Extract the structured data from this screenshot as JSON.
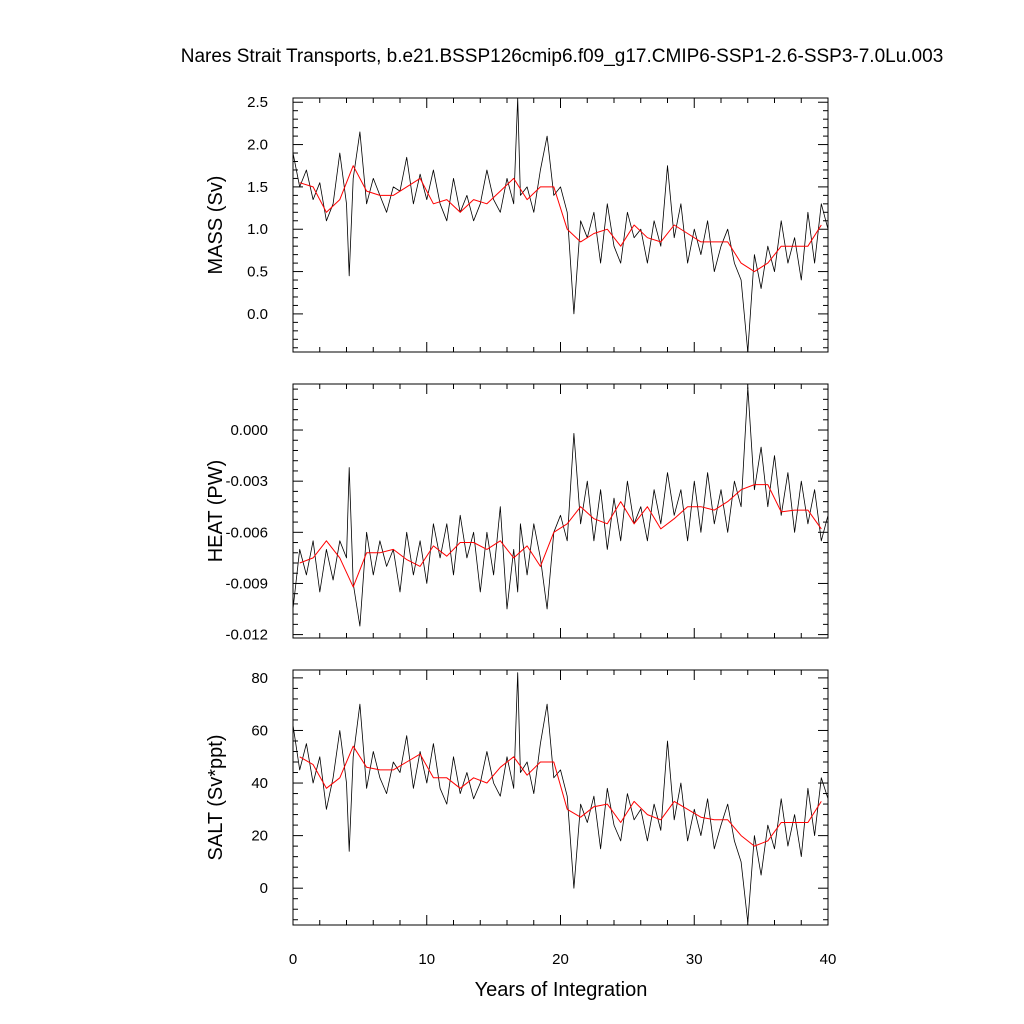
{
  "chart_data": {
    "type": "line",
    "title": "Nares Strait Transports, b.e21.BSSP126cmip6.f09_g17.CMIP6-SSP1-2.6-SSP3-7.0Lu.003",
    "xlabel": "Years of Integration",
    "xlim": [
      0,
      40
    ],
    "x_ticks": [
      "0",
      "10",
      "20",
      "30",
      "40"
    ],
    "colors": {
      "monthly": "#000000",
      "annual_mean": "#ff0000"
    },
    "panels": [
      {
        "name": "mass",
        "ylabel": "MASS (Sv)",
        "ylim": [
          -0.45,
          2.55
        ],
        "y_ticks": [
          "2.5",
          "2.0",
          "1.5",
          "1.0",
          "0.5",
          "0.0"
        ],
        "series": [
          {
            "x": [
              0.0,
              0.5,
              1.0,
              1.5,
              2.0,
              2.5,
              3.0,
              3.5,
              4.0,
              4.2,
              4.5,
              5.0,
              5.5,
              6.0,
              6.5,
              7.0,
              7.5,
              8.0,
              8.5,
              9.0,
              9.5,
              10.0,
              10.5,
              11.0,
              11.5,
              12.0,
              12.5,
              13.0,
              13.5,
              14.0,
              14.5,
              15.0,
              15.5,
              16.0,
              16.5,
              16.8,
              17.0,
              17.5,
              18.0,
              18.5,
              19.0,
              19.5,
              20.0,
              20.5,
              21.0,
              21.5,
              22.0,
              22.5,
              23.0,
              23.5,
              24.0,
              24.5,
              25.0,
              25.5,
              26.0,
              26.5,
              27.0,
              27.5,
              28.0,
              28.5,
              29.0,
              29.5,
              30.0,
              30.5,
              31.0,
              31.5,
              32.0,
              32.5,
              33.0,
              33.5,
              34.0,
              34.5,
              35.0,
              35.5,
              36.0,
              36.5,
              37.0,
              37.5,
              38.0,
              38.5,
              39.0,
              39.5,
              40.0
            ],
            "values": [
              1.9,
              1.5,
              1.7,
              1.35,
              1.55,
              1.1,
              1.3,
              1.9,
              1.3,
              0.45,
              1.6,
              2.15,
              1.3,
              1.6,
              1.4,
              1.2,
              1.5,
              1.45,
              1.85,
              1.3,
              1.65,
              1.35,
              1.7,
              1.3,
              1.1,
              1.6,
              1.2,
              1.4,
              1.1,
              1.3,
              1.7,
              1.35,
              1.2,
              1.6,
              1.3,
              2.55,
              1.4,
              1.5,
              1.2,
              1.7,
              2.1,
              1.4,
              1.5,
              1.2,
              0.0,
              1.1,
              0.9,
              1.2,
              0.6,
              1.3,
              0.8,
              0.6,
              1.2,
              0.9,
              1.0,
              0.6,
              1.1,
              0.8,
              1.75,
              0.9,
              1.3,
              0.6,
              1.0,
              0.7,
              1.1,
              0.5,
              0.8,
              1.0,
              0.6,
              0.4,
              -0.45,
              0.7,
              0.3,
              0.8,
              0.5,
              1.1,
              0.6,
              0.9,
              0.4,
              1.2,
              0.6,
              1.3,
              1.0
            ]
          },
          {
            "x": [
              0.5,
              1.5,
              2.5,
              3.5,
              4.5,
              5.5,
              6.5,
              7.5,
              8.5,
              9.5,
              10.5,
              11.5,
              12.5,
              13.5,
              14.5,
              15.5,
              16.5,
              17.5,
              18.5,
              19.5,
              20.5,
              21.5,
              22.5,
              23.5,
              24.5,
              25.5,
              26.5,
              27.5,
              28.5,
              29.5,
              30.5,
              31.5,
              32.5,
              33.5,
              34.5,
              35.5,
              36.5,
              37.5,
              38.5,
              39.5
            ],
            "values": [
              1.55,
              1.5,
              1.2,
              1.35,
              1.75,
              1.45,
              1.4,
              1.4,
              1.5,
              1.6,
              1.3,
              1.35,
              1.2,
              1.35,
              1.3,
              1.45,
              1.6,
              1.35,
              1.5,
              1.5,
              1.0,
              0.85,
              0.95,
              1.0,
              0.8,
              1.05,
              0.9,
              0.85,
              1.05,
              0.95,
              0.85,
              0.85,
              0.85,
              0.6,
              0.5,
              0.6,
              0.8,
              0.8,
              0.8,
              1.05
            ]
          }
        ]
      },
      {
        "name": "heat",
        "ylabel": "HEAT (PW)",
        "ylim": [
          -0.0122,
          0.0027
        ],
        "y_ticks": [
          "0.000",
          "-0.003",
          "-0.006",
          "-0.009",
          "-0.012"
        ],
        "series": [
          {
            "x": [
              0.0,
              0.5,
              1.0,
              1.5,
              2.0,
              2.5,
              3.0,
              3.5,
              4.0,
              4.2,
              4.5,
              5.0,
              5.5,
              6.0,
              6.5,
              7.0,
              7.5,
              8.0,
              8.5,
              9.0,
              9.5,
              10.0,
              10.5,
              11.0,
              11.5,
              12.0,
              12.5,
              13.0,
              13.5,
              14.0,
              14.5,
              15.0,
              15.5,
              16.0,
              16.5,
              16.8,
              17.0,
              17.5,
              18.0,
              18.5,
              19.0,
              19.5,
              20.0,
              20.5,
              21.0,
              21.5,
              22.0,
              22.5,
              23.0,
              23.5,
              24.0,
              24.5,
              25.0,
              25.5,
              26.0,
              26.5,
              27.0,
              27.5,
              28.0,
              28.5,
              29.0,
              29.5,
              30.0,
              30.5,
              31.0,
              31.5,
              32.0,
              32.5,
              33.0,
              33.5,
              34.0,
              34.5,
              35.0,
              35.5,
              36.0,
              36.5,
              37.0,
              37.5,
              38.0,
              38.5,
              39.0,
              39.5,
              40.0
            ],
            "values": [
              -0.0105,
              -0.007,
              -0.0085,
              -0.0065,
              -0.0095,
              -0.007,
              -0.0088,
              -0.0065,
              -0.0075,
              -0.0022,
              -0.009,
              -0.0115,
              -0.006,
              -0.0085,
              -0.0065,
              -0.008,
              -0.007,
              -0.0095,
              -0.006,
              -0.0085,
              -0.0065,
              -0.009,
              -0.0055,
              -0.0075,
              -0.0055,
              -0.0085,
              -0.005,
              -0.0075,
              -0.006,
              -0.0095,
              -0.006,
              -0.0085,
              -0.0045,
              -0.0105,
              -0.007,
              -0.0095,
              -0.0055,
              -0.0085,
              -0.0055,
              -0.0075,
              -0.0105,
              -0.006,
              -0.005,
              -0.0065,
              -0.0002,
              -0.0055,
              -0.003,
              -0.0065,
              -0.0035,
              -0.007,
              -0.004,
              -0.0065,
              -0.003,
              -0.0055,
              -0.0045,
              -0.0065,
              -0.0035,
              -0.0055,
              -0.0025,
              -0.005,
              -0.0035,
              -0.0065,
              -0.003,
              -0.006,
              -0.0025,
              -0.0055,
              -0.0035,
              -0.006,
              -0.003,
              -0.0045,
              0.0025,
              -0.0035,
              -0.001,
              -0.0045,
              -0.0015,
              -0.005,
              -0.0025,
              -0.006,
              -0.003,
              -0.0055,
              -0.0035,
              -0.0065,
              -0.005
            ]
          },
          {
            "x": [
              0.5,
              1.5,
              2.5,
              3.5,
              4.5,
              5.5,
              6.5,
              7.5,
              8.5,
              9.5,
              10.5,
              11.5,
              12.5,
              13.5,
              14.5,
              15.5,
              16.5,
              17.5,
              18.5,
              19.5,
              20.5,
              21.5,
              22.5,
              23.5,
              24.5,
              25.5,
              26.5,
              27.5,
              28.5,
              29.5,
              30.5,
              31.5,
              32.5,
              33.5,
              34.5,
              35.5,
              36.5,
              37.5,
              38.5,
              39.5
            ],
            "values": [
              -0.0078,
              -0.0075,
              -0.0065,
              -0.0075,
              -0.0092,
              -0.0072,
              -0.0072,
              -0.007,
              -0.0076,
              -0.008,
              -0.0068,
              -0.0074,
              -0.0066,
              -0.0066,
              -0.007,
              -0.0065,
              -0.0075,
              -0.0068,
              -0.008,
              -0.006,
              -0.0055,
              -0.0045,
              -0.0052,
              -0.0055,
              -0.0042,
              -0.0055,
              -0.0045,
              -0.0058,
              -0.0052,
              -0.0045,
              -0.0045,
              -0.0047,
              -0.0042,
              -0.0035,
              -0.0032,
              -0.0032,
              -0.0048,
              -0.0047,
              -0.0047,
              -0.0058
            ]
          }
        ]
      },
      {
        "name": "salt",
        "ylabel": "SALT (Sv*ppt)",
        "ylim": [
          -14,
          83
        ],
        "y_ticks": [
          "80",
          "60",
          "40",
          "20",
          "0"
        ],
        "series": [
          {
            "x": [
              0.0,
              0.5,
              1.0,
              1.5,
              2.0,
              2.5,
              3.0,
              3.5,
              4.0,
              4.2,
              4.5,
              5.0,
              5.5,
              6.0,
              6.5,
              7.0,
              7.5,
              8.0,
              8.5,
              9.0,
              9.5,
              10.0,
              10.5,
              11.0,
              11.5,
              12.0,
              12.5,
              13.0,
              13.5,
              14.0,
              14.5,
              15.0,
              15.5,
              16.0,
              16.5,
              16.8,
              17.0,
              17.5,
              18.0,
              18.5,
              19.0,
              19.5,
              20.0,
              20.5,
              21.0,
              21.5,
              22.0,
              22.5,
              23.0,
              23.5,
              24.0,
              24.5,
              25.0,
              25.5,
              26.0,
              26.5,
              27.0,
              27.5,
              28.0,
              28.5,
              29.0,
              29.5,
              30.0,
              30.5,
              31.0,
              31.5,
              32.0,
              32.5,
              33.0,
              33.5,
              34.0,
              34.5,
              35.0,
              35.5,
              36.0,
              36.5,
              37.0,
              37.5,
              38.0,
              38.5,
              39.0,
              39.5,
              40.0
            ],
            "values": [
              62,
              45,
              55,
              40,
              50,
              30,
              42,
              60,
              40,
              14,
              50,
              70,
              38,
              52,
              42,
              36,
              48,
              44,
              58,
              38,
              52,
              40,
              55,
              38,
              32,
              50,
              36,
              44,
              34,
              40,
              52,
              40,
              35,
              50,
              38,
              82,
              44,
              48,
              36,
              55,
              70,
              42,
              45,
              35,
              0,
              32,
              25,
              35,
              15,
              38,
              24,
              18,
              36,
              26,
              30,
              18,
              32,
              22,
              56,
              26,
              40,
              18,
              30,
              20,
              34,
              15,
              24,
              32,
              18,
              10,
              -13,
              20,
              5,
              24,
              15,
              34,
              16,
              28,
              12,
              38,
              20,
              42,
              34
            ]
          },
          {
            "x": [
              0.5,
              1.5,
              2.5,
              3.5,
              4.5,
              5.5,
              6.5,
              7.5,
              8.5,
              9.5,
              10.5,
              11.5,
              12.5,
              13.5,
              14.5,
              15.5,
              16.5,
              17.5,
              18.5,
              19.5,
              20.5,
              21.5,
              22.5,
              23.5,
              24.5,
              25.5,
              26.5,
              27.5,
              28.5,
              29.5,
              30.5,
              31.5,
              32.5,
              33.5,
              34.5,
              35.5,
              36.5,
              37.5,
              38.5,
              39.5
            ],
            "values": [
              50,
              47,
              38,
              42,
              54,
              46,
              45,
              45,
              48,
              51,
              42,
              42,
              38,
              42,
              40,
              46,
              50,
              43,
              48,
              48,
              30,
              27,
              31,
              32,
              25,
              33,
              28,
              26,
              33,
              30,
              27,
              26,
              26,
              20,
              16,
              18,
              25,
              25,
              25,
              33
            ]
          }
        ]
      }
    ]
  }
}
